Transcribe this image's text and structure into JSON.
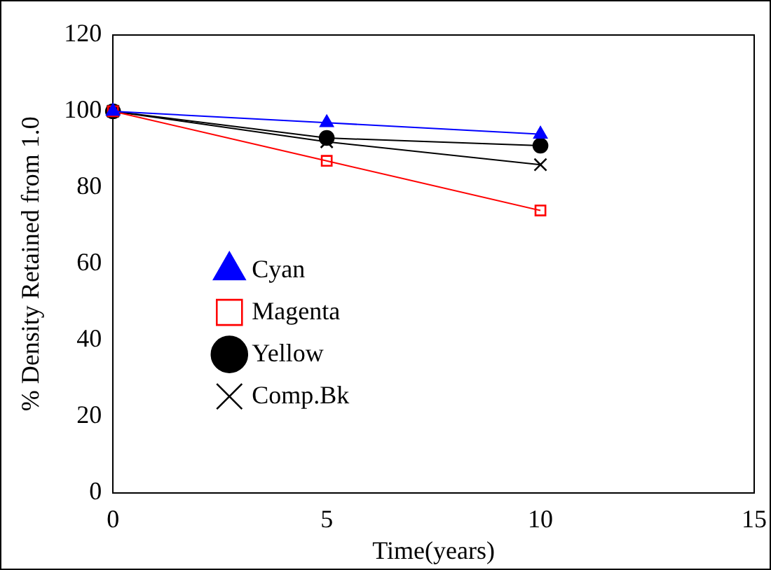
{
  "chart_data": {
    "type": "line",
    "xlabel": "Time(years)",
    "ylabel": "% Density Retained from 1.0",
    "x": [
      0,
      5,
      10
    ],
    "series": [
      {
        "name": "Cyan",
        "color": "#0000ff",
        "marker": "triangle",
        "values": [
          100,
          97,
          94
        ]
      },
      {
        "name": "Magenta",
        "color": "#ff0000",
        "marker": "square",
        "values": [
          100,
          87,
          74
        ]
      },
      {
        "name": "Yellow",
        "color": "#000000",
        "marker": "circle",
        "values": [
          100,
          93,
          91
        ]
      },
      {
        "name": "Comp.Bk",
        "color": "#000000",
        "marker": "cross",
        "values": [
          100,
          92,
          86
        ]
      }
    ],
    "xlim": [
      0,
      15
    ],
    "xticks": [
      0,
      5,
      10,
      15
    ],
    "ylim": [
      0,
      120
    ],
    "yticks": [
      0,
      20,
      40,
      60,
      80,
      100,
      120
    ],
    "grid": false,
    "legend": "center left"
  }
}
